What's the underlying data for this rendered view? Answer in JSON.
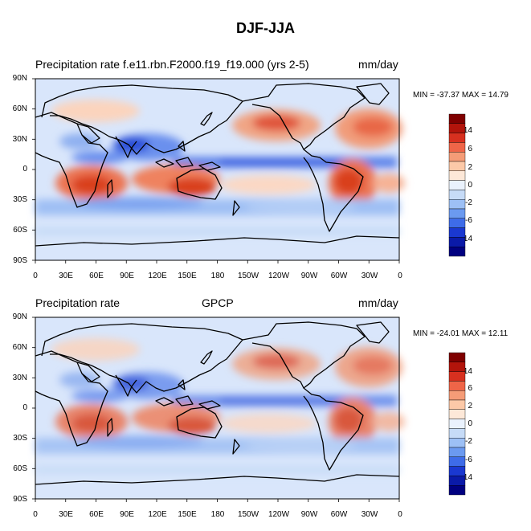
{
  "title": "DJF-JJA",
  "panels": [
    {
      "left_title": "Precipitation rate f.e11.rbn.F2000.f19_f19.000 (yrs 2-5)",
      "center_title": "",
      "units": "mm/day",
      "min": -37.37,
      "max": 14.79,
      "minmax_text": "MIN = -37.37 MAX =  14.79"
    },
    {
      "left_title": "Precipitation rate",
      "center_title": "GPCP",
      "units": "mm/day",
      "min": -24.01,
      "max": 12.11,
      "minmax_text": "MIN = -24.01 MAX =  12.11"
    }
  ],
  "lat_ticks": [
    "90N",
    "60N",
    "30N",
    "0",
    "30S",
    "60S",
    "90S"
  ],
  "lon_ticks": [
    "0",
    "30E",
    "60E",
    "90E",
    "120E",
    "150E",
    "180",
    "150W",
    "120W",
    "90W",
    "60W",
    "30W",
    "0"
  ],
  "colorbar": {
    "labels": [
      "14",
      "6",
      "2",
      "0",
      "-2",
      "-6",
      "-14"
    ],
    "colors": [
      "#7f0000",
      "#b2140b",
      "#d7301f",
      "#ef6548",
      "#f59c77",
      "#fcc9a8",
      "#fde8d8",
      "#eaf2fd",
      "#c6dbf7",
      "#9dc0f5",
      "#6b9af0",
      "#3e6ce8",
      "#1a38d0",
      "#0a1aa8",
      "#000080"
    ]
  },
  "colors": {
    "land_outline": "#000000",
    "background": "#ffffff"
  }
}
